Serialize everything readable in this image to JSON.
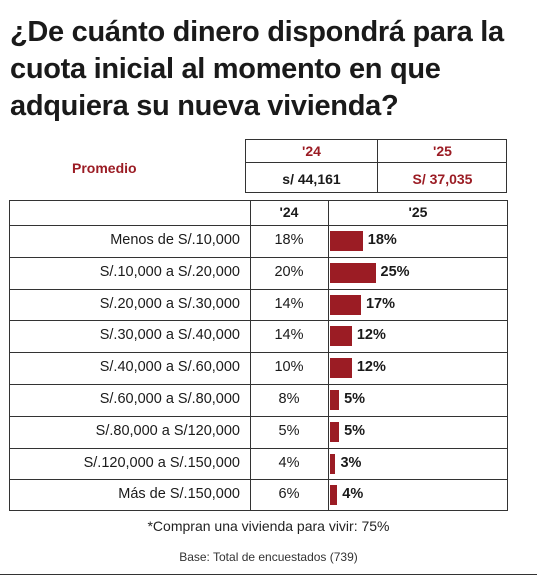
{
  "title": "¿De cuánto dinero dispondrá para la cuota inicial al momento en que adquiera su nueva vivienda?",
  "average": {
    "label": "Promedio",
    "years": [
      "'24",
      "'25"
    ],
    "values": [
      "s/ 44,161",
      "S/ 37,035"
    ]
  },
  "table": {
    "col_24": "'24",
    "col_25": "'25"
  },
  "chart_data": {
    "type": "bar",
    "title": "¿De cuánto dinero dispondrá para la cuota inicial al momento en que adquiera su nueva vivienda?",
    "categories": [
      "Menos de S/.10,000",
      "S/.10,000 a S/.20,000",
      "S/.20,000 a S/.30,000",
      "S/.30,000 a S/.40,000",
      "S/.40,000 a S/.60,000",
      "S/.60,000 a S/.80,000",
      "S/.80,000 a S/120,000",
      "S/.120,000 a S/.150,000",
      "Más de S/.150,000"
    ],
    "series": [
      {
        "name": "'24",
        "values": [
          18,
          20,
          14,
          14,
          10,
          8,
          5,
          4,
          6
        ],
        "labels": [
          "18%",
          "20%",
          "14%",
          "14%",
          "10%",
          "8%",
          "5%",
          "4%",
          "6%"
        ]
      },
      {
        "name": "'25",
        "values": [
          18,
          25,
          17,
          12,
          12,
          5,
          5,
          3,
          4
        ],
        "labels": [
          "18%",
          "25%",
          "17%",
          "12%",
          "12%",
          "5%",
          "5%",
          "3%",
          "4%"
        ]
      }
    ],
    "unit": "%",
    "bar_color": "#9b1c24"
  },
  "footnote": "*Compran una vivienda para vivir: 75%",
  "base": "Base: Total de encuestados (739)"
}
